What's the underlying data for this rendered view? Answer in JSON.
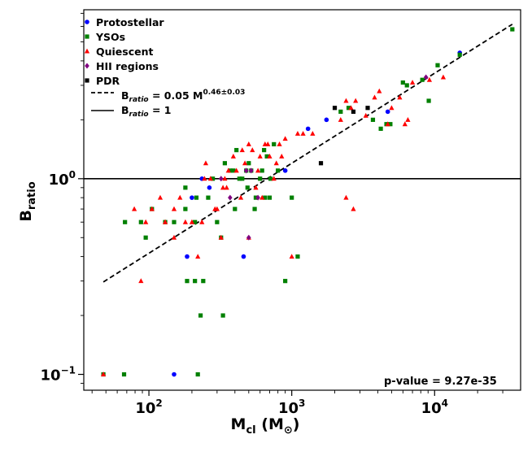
{
  "chart_data": {
    "type": "scatter",
    "xscale": "log",
    "yscale": "log",
    "xlim": [
      35,
      40000
    ],
    "ylim": [
      0.083,
      7.3
    ],
    "xticks": [
      {
        "value": 100,
        "base": "10",
        "exp": "2"
      },
      {
        "value": 1000,
        "base": "10",
        "exp": "3"
      },
      {
        "value": 10000,
        "base": "10",
        "exp": "4"
      }
    ],
    "yticks": [
      {
        "value": 0.1,
        "base": "10",
        "exp": "−1"
      },
      {
        "value": 1,
        "label": "10",
        "exp": "0"
      }
    ],
    "xlabel": {
      "main": "M",
      "sub": "cl",
      "unit": " (M",
      "unit_sub": "⊙",
      "close": ")"
    },
    "ylabel": {
      "main": "B",
      "sub": "ratio"
    },
    "grid": false,
    "legend_position": "upper-left",
    "legend": [
      {
        "label": "Protostellar",
        "marker": "circle",
        "color": "#0000ff"
      },
      {
        "label": "YSOs",
        "marker": "square",
        "color": "#008000"
      },
      {
        "label": "Quiescent",
        "marker": "triangle",
        "color": "#ff0000"
      },
      {
        "label": "HII regions",
        "marker": "diamond",
        "color": "#800080"
      },
      {
        "label": "PDR",
        "marker": "square",
        "color": "#000000"
      }
    ],
    "fit_legend": {
      "prefix": "B",
      "sub": "ratio",
      "eq": " = 0.05 M",
      "sup": "0.46±0.03"
    },
    "unity_legend": {
      "prefix": "B",
      "sub": "ratio",
      "eq": " = 1"
    },
    "annotation": "p-value = 9.27e-35",
    "fit": {
      "coef": 0.05,
      "exponent": 0.46,
      "xrange": [
        48,
        35000
      ]
    },
    "unity": 1,
    "series": [
      {
        "name": "Protostellar",
        "marker": "circle",
        "color": "#0000ff",
        "points": [
          [
            150,
            0.1
          ],
          [
            185,
            0.4
          ],
          [
            200,
            0.8
          ],
          [
            235,
            1.0
          ],
          [
            265,
            0.9
          ],
          [
            460,
            0.4
          ],
          [
            900,
            1.1
          ],
          [
            1300,
            1.8
          ],
          [
            1750,
            2.0
          ],
          [
            4700,
            2.2
          ],
          [
            15000,
            4.4
          ]
        ]
      },
      {
        "name": "YSOs",
        "marker": "square",
        "color": "#008000",
        "points": [
          [
            48,
            0.1
          ],
          [
            67,
            0.1
          ],
          [
            68,
            0.6
          ],
          [
            88,
            0.6
          ],
          [
            95,
            0.5
          ],
          [
            105,
            0.7
          ],
          [
            130,
            0.6
          ],
          [
            150,
            0.6
          ],
          [
            180,
            0.9
          ],
          [
            180,
            0.7
          ],
          [
            185,
            0.3
          ],
          [
            210,
            0.3
          ],
          [
            210,
            0.6
          ],
          [
            215,
            0.8
          ],
          [
            220,
            0.1
          ],
          [
            230,
            0.2
          ],
          [
            240,
            0.3
          ],
          [
            260,
            0.8
          ],
          [
            280,
            1.0
          ],
          [
            300,
            0.6
          ],
          [
            320,
            0.5
          ],
          [
            330,
            0.2
          ],
          [
            340,
            1.2
          ],
          [
            370,
            1.1
          ],
          [
            390,
            1.1
          ],
          [
            400,
            0.7
          ],
          [
            410,
            1.4
          ],
          [
            430,
            1.0
          ],
          [
            450,
            1.0
          ],
          [
            480,
            1.1
          ],
          [
            490,
            0.9
          ],
          [
            500,
            1.2
          ],
          [
            520,
            1.1
          ],
          [
            550,
            0.7
          ],
          [
            560,
            0.8
          ],
          [
            600,
            1.0
          ],
          [
            620,
            1.1
          ],
          [
            640,
            1.4
          ],
          [
            650,
            0.8
          ],
          [
            670,
            1.3
          ],
          [
            700,
            0.8
          ],
          [
            710,
            1.0
          ],
          [
            750,
            1.5
          ],
          [
            800,
            1.1
          ],
          [
            900,
            0.3
          ],
          [
            1000,
            0.8
          ],
          [
            1100,
            0.4
          ],
          [
            2200,
            2.2
          ],
          [
            2500,
            2.3
          ],
          [
            3700,
            2.0
          ],
          [
            4200,
            1.8
          ],
          [
            4600,
            1.9
          ],
          [
            4900,
            1.9
          ],
          [
            6000,
            3.1
          ],
          [
            6400,
            3.0
          ],
          [
            8200,
            3.2
          ],
          [
            9100,
            2.5
          ],
          [
            10500,
            3.8
          ],
          [
            15000,
            4.3
          ],
          [
            35000,
            5.8
          ]
        ]
      },
      {
        "name": "Quiescent",
        "marker": "triangle",
        "color": "#ff0000",
        "points": [
          [
            48,
            0.1
          ],
          [
            79,
            0.7
          ],
          [
            88,
            0.3
          ],
          [
            95,
            0.6
          ],
          [
            105,
            0.7
          ],
          [
            120,
            0.8
          ],
          [
            130,
            0.6
          ],
          [
            150,
            0.7
          ],
          [
            150,
            0.5
          ],
          [
            165,
            0.8
          ],
          [
            180,
            0.6
          ],
          [
            200,
            0.6
          ],
          [
            220,
            0.4
          ],
          [
            235,
            0.6
          ],
          [
            245,
            1.0
          ],
          [
            250,
            1.2
          ],
          [
            270,
            1.0
          ],
          [
            290,
            0.7
          ],
          [
            300,
            0.7
          ],
          [
            320,
            0.5
          ],
          [
            330,
            0.9
          ],
          [
            340,
            1.0
          ],
          [
            350,
            0.9
          ],
          [
            360,
            1.1
          ],
          [
            390,
            1.3
          ],
          [
            410,
            1.1
          ],
          [
            440,
            0.8
          ],
          [
            450,
            1.4
          ],
          [
            470,
            1.2
          ],
          [
            500,
            1.5
          ],
          [
            500,
            0.5
          ],
          [
            530,
            1.4
          ],
          [
            560,
            0.9
          ],
          [
            580,
            1.1
          ],
          [
            600,
            1.3
          ],
          [
            620,
            0.8
          ],
          [
            650,
            1.5
          ],
          [
            680,
            1.5
          ],
          [
            700,
            1.3
          ],
          [
            750,
            1.0
          ],
          [
            780,
            1.2
          ],
          [
            820,
            1.5
          ],
          [
            850,
            1.3
          ],
          [
            900,
            1.6
          ],
          [
            1000,
            0.4
          ],
          [
            1100,
            1.7
          ],
          [
            1200,
            1.7
          ],
          [
            1400,
            1.7
          ],
          [
            2200,
            2.0
          ],
          [
            2400,
            2.5
          ],
          [
            2600,
            2.3
          ],
          [
            2400,
            0.8
          ],
          [
            2700,
            0.7
          ],
          [
            2800,
            2.5
          ],
          [
            3300,
            2.1
          ],
          [
            3800,
            2.6
          ],
          [
            4100,
            2.8
          ],
          [
            4700,
            1.9
          ],
          [
            5000,
            2.3
          ],
          [
            5700,
            2.6
          ],
          [
            6200,
            1.9
          ],
          [
            6500,
            2.0
          ],
          [
            7000,
            3.1
          ],
          [
            9200,
            3.2
          ],
          [
            11500,
            3.3
          ]
        ]
      },
      {
        "name": "HII regions",
        "marker": "diamond",
        "color": "#800080",
        "points": [
          [
            320,
            1.0
          ],
          [
            370,
            0.8
          ],
          [
            480,
            1.1
          ],
          [
            500,
            0.5
          ],
          [
            520,
            1.1
          ],
          [
            580,
            0.8
          ],
          [
            8700,
            3.3
          ]
        ]
      },
      {
        "name": "PDR",
        "marker": "square",
        "color": "#000000",
        "points": [
          [
            1600,
            1.2
          ],
          [
            2000,
            2.3
          ],
          [
            2700,
            2.2
          ],
          [
            3400,
            2.3
          ]
        ]
      }
    ]
  }
}
